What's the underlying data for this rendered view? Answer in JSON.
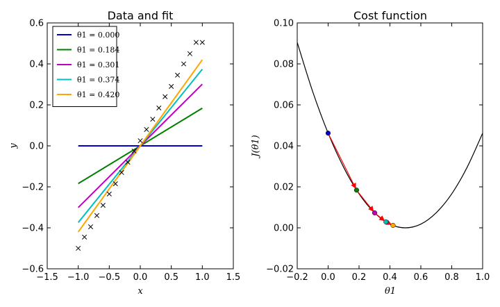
{
  "chart_data": [
    {
      "type": "line",
      "title": "Data and fit",
      "xlabel": "x",
      "ylabel": "y",
      "xlim": [
        -1.5,
        1.5
      ],
      "ylim": [
        -0.6,
        0.6
      ],
      "xticks": [
        -1.5,
        -1.0,
        -0.5,
        0.0,
        0.5,
        1.0,
        1.5
      ],
      "yticks": [
        -0.6,
        -0.4,
        -0.2,
        0.0,
        0.2,
        0.4,
        0.6
      ],
      "legend_position": "top-left",
      "scatter": {
        "marker": "x",
        "color": "#000000",
        "x": [
          -1.0,
          -0.9,
          -0.8,
          -0.7,
          -0.6,
          -0.5,
          -0.4,
          -0.3,
          -0.2,
          -0.1,
          0.0,
          0.1,
          0.2,
          0.3,
          0.4,
          0.5,
          0.6,
          0.7,
          0.8,
          0.9,
          1.0
        ],
        "y": [
          -0.5,
          -0.445,
          -0.395,
          -0.34,
          -0.29,
          -0.235,
          -0.185,
          -0.13,
          -0.08,
          -0.025,
          0.025,
          0.08,
          0.13,
          0.185,
          0.24,
          0.29,
          0.345,
          0.4,
          0.45,
          0.505,
          0.505
        ]
      },
      "series": [
        {
          "name": "θ1 = 0.000",
          "theta": 0.0,
          "x": [
            -1.0,
            1.0
          ],
          "y": [
            0.0,
            0.0
          ],
          "color": "#0000cc"
        },
        {
          "name": "θ1 = 0.184",
          "theta": 0.184,
          "x": [
            -1.0,
            1.0
          ],
          "y": [
            -0.184,
            0.184
          ],
          "color": "#007f00"
        },
        {
          "name": "θ1 = 0.301",
          "theta": 0.301,
          "x": [
            -1.0,
            1.0
          ],
          "y": [
            -0.301,
            0.301
          ],
          "color": "#bf00bf"
        },
        {
          "name": "θ1 = 0.374",
          "theta": 0.374,
          "x": [
            -1.0,
            1.0
          ],
          "y": [
            -0.374,
            0.374
          ],
          "color": "#00bfbf"
        },
        {
          "name": "θ1 = 0.420",
          "theta": 0.42,
          "x": [
            -1.0,
            1.0
          ],
          "y": [
            -0.42,
            0.42
          ],
          "color": "#ffa500"
        }
      ]
    },
    {
      "type": "line",
      "title": "Cost function",
      "xlabel": "θ1",
      "ylabel": "J(θ1)",
      "xlim": [
        -0.2,
        1.0
      ],
      "ylim": [
        -0.02,
        0.1
      ],
      "xticks": [
        -0.2,
        0.0,
        0.2,
        0.4,
        0.6,
        0.8,
        1.0
      ],
      "yticks": [
        -0.02,
        0.0,
        0.02,
        0.04,
        0.06,
        0.08,
        0.1
      ],
      "curve": {
        "color": "#000000",
        "x": [
          -0.2,
          -0.1,
          0.0,
          0.1,
          0.2,
          0.3,
          0.4,
          0.5,
          0.6,
          0.7,
          0.8,
          0.9,
          1.0
        ],
        "y": [
          0.0905,
          0.0665,
          0.0462,
          0.0296,
          0.0166,
          0.0074,
          0.0018,
          0.0,
          0.0018,
          0.0074,
          0.0166,
          0.0296,
          0.0462
        ]
      },
      "points": [
        {
          "x": 0.0,
          "y": 0.0462,
          "color": "#0000cc"
        },
        {
          "x": 0.184,
          "y": 0.0184,
          "color": "#007f00"
        },
        {
          "x": 0.301,
          "y": 0.0073,
          "color": "#bf00bf"
        },
        {
          "x": 0.374,
          "y": 0.0029,
          "color": "#00bfbf"
        },
        {
          "x": 0.42,
          "y": 0.0012,
          "color": "#ffa500"
        }
      ],
      "arrow_color": "#ff0000"
    }
  ]
}
